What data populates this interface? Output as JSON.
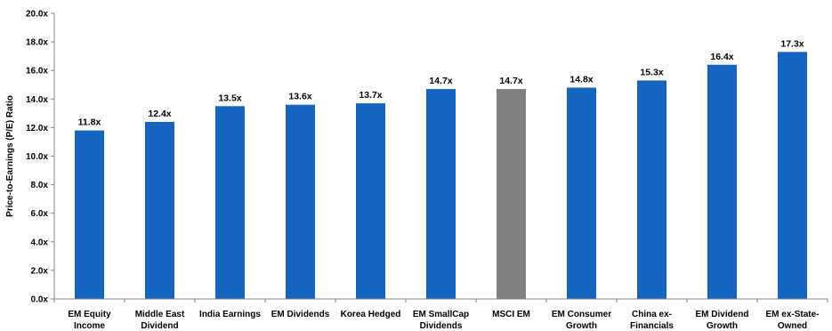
{
  "chart_data": {
    "type": "bar",
    "title": "",
    "xlabel": "",
    "ylabel": "Price-to-Earnings (P/E) Ratio",
    "ylim": [
      0,
      20
    ],
    "ytick_step": 2,
    "ytick_suffix": "x",
    "grid": false,
    "legend": "none",
    "categories": [
      [
        "EM Equity",
        "Income"
      ],
      [
        "Middle East",
        "Dividend"
      ],
      [
        "India Earnings"
      ],
      [
        "EM Dividends"
      ],
      [
        "Korea Hedged"
      ],
      [
        "EM SmallCap",
        "Dividends"
      ],
      [
        "MSCI EM"
      ],
      [
        "EM Consumer",
        "Growth"
      ],
      [
        "China ex-",
        "Financials"
      ],
      [
        "EM Dividend",
        "Growth"
      ],
      [
        "EM ex-State-",
        "Owned"
      ]
    ],
    "values": [
      11.8,
      12.4,
      13.5,
      13.6,
      13.7,
      14.7,
      14.7,
      14.8,
      15.3,
      16.4,
      17.3
    ],
    "data_labels": [
      "11.8x",
      "12.4x",
      "13.5x",
      "13.6x",
      "13.7x",
      "14.7x",
      "14.7x",
      "14.8x",
      "15.3x",
      "16.4x",
      "17.3x"
    ],
    "colors": {
      "bar": "#1565C0",
      "benchmark_bar": "#808080",
      "axis": "#868686",
      "strip": "#1F5AA8"
    },
    "benchmark_index": 6
  }
}
